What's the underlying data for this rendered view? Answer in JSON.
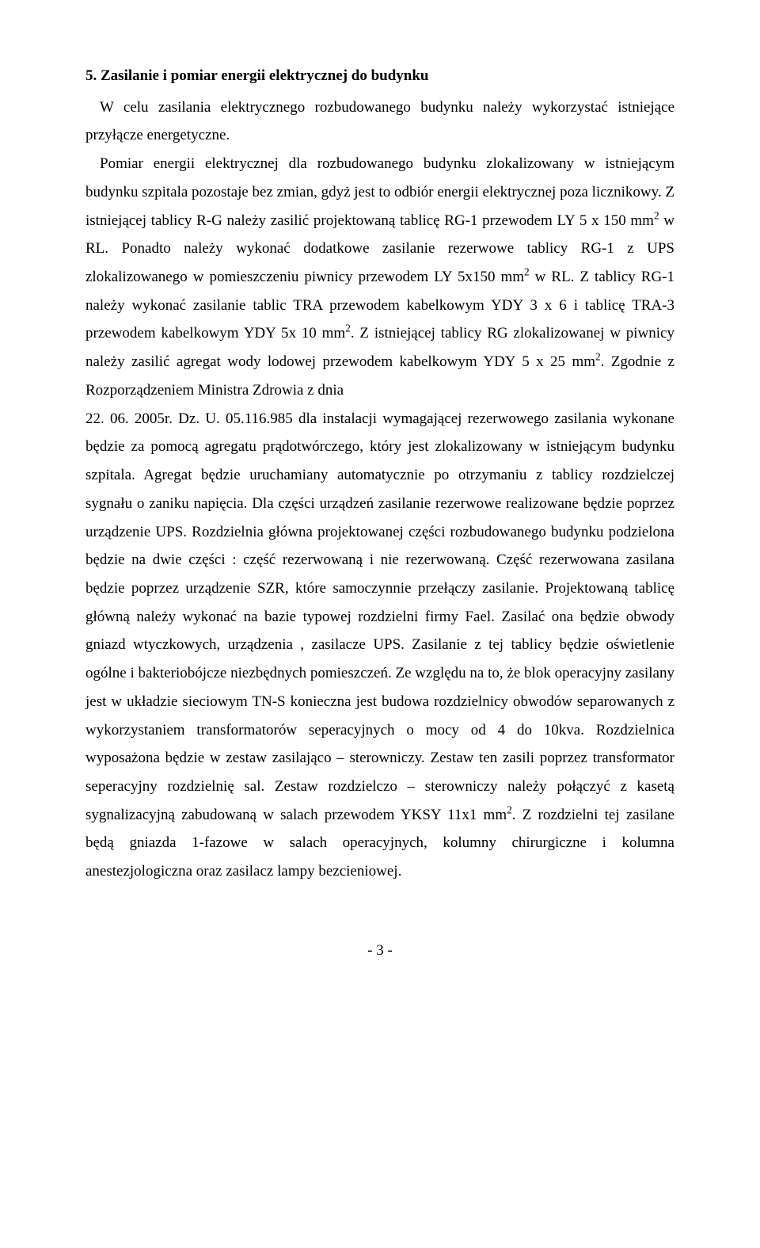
{
  "heading": "5. Zasilanie i pomiar energii elektrycznej do budynku",
  "paragraphs": {
    "p1": "W celu zasilania elektrycznego rozbudowanego budynku należy wykorzystać istniejące przyłącze energetyczne.",
    "p2a": "Pomiar energii elektrycznej dla rozbudowanego budynku zlokalizowany w istniejącym budynku szpitala pozostaje bez zmian, gdyż jest to odbiór energii elektrycznej poza licznikowy. Z istniejącej tablicy R-G należy zasilić projektowaną tablicę RG-1 przewodem LY 5 x 150 mm",
    "p2b": " w RL. Ponadto należy wykonać dodatkowe zasilanie rezerwowe tablicy RG-1 z UPS zlokalizowanego w pomieszczeniu piwnicy przewodem LY 5x150 mm",
    "p2c": " w RL. Z tablicy RG-1 należy wykonać zasilanie tablic TRA przewodem kabelkowym YDY 3 x 6 i tablicę TRA-3 przewodem kabelkowym YDY 5x 10 mm",
    "p2d": ". Z istniejącej tablicy RG zlokalizowanej w piwnicy należy zasilić agregat wody lodowej przewodem kabelkowym YDY 5 x 25 mm",
    "p2e": ". Zgodnie z Rozporządzeniem Ministra Zdrowia z dnia",
    "p3a": "22. 06. 2005r. Dz. U. 05.116.985 dla instalacji wymagającej rezerwowego zasilania wykonane będzie za pomocą agregatu prądotwórczego, który jest zlokalizowany w istniejącym budynku szpitala. Agregat będzie uruchamiany automatycznie po otrzymaniu z tablicy rozdzielczej sygnału o zaniku napięcia. Dla części urządzeń zasilanie rezerwowe realizowane będzie poprzez urządzenie UPS. Rozdzielnia główna projektowanej części rozbudowanego budynku podzielona będzie na dwie części : część rezerwowaną i nie rezerwowaną. Część rezerwowana zasilana będzie poprzez urządzenie SZR, które samoczynnie przełączy zasilanie. Projektowaną tablicę główną należy wykonać na bazie typowej rozdzielni firmy Fael. Zasilać ona będzie obwody gniazd wtyczkowych, urządzenia , zasilacze UPS. Zasilanie z tej tablicy będzie oświetlenie ogólne i bakteriobójcze niezbędnych pomieszczeń. Ze względu na to, że blok operacyjny zasilany jest w układzie sieciowym TN-S konieczna jest budowa rozdzielnicy obwodów separowanych z wykorzystaniem transformatorów seperacyjnych o mocy od 4 do 10kva. Rozdzielnica wyposażona będzie w zestaw zasilająco – sterowniczy. Zestaw ten zasili poprzez transformator seperacyjny rozdzielnię sal. Zestaw rozdzielczo – sterowniczy należy połączyć z kasetą sygnalizacyjną zabudowaną w salach przewodem YKSY 11x1 mm",
    "p3b": ". Z rozdzielni tej zasilane będą gniazda 1-fazowe w salach operacyjnych, kolumny chirurgiczne i kolumna anestezjologiczna oraz zasilacz lampy bezcieniowej."
  },
  "superscript": "2",
  "page_number": "- 3 -"
}
